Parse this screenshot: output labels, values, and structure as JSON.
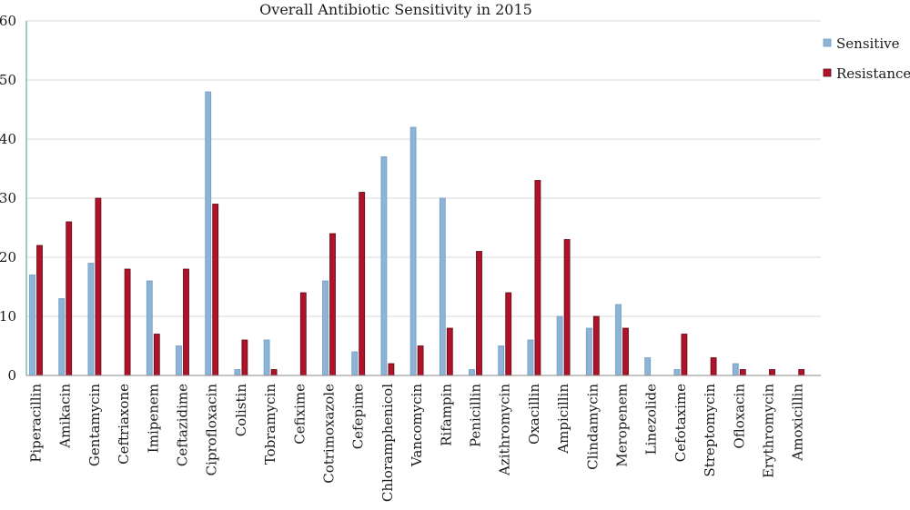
{
  "chart_data": {
    "type": "bar",
    "title": "Overall Antibiotic Sensitivity in 2015",
    "xlabel": "",
    "ylabel": "",
    "ylim": [
      0,
      60
    ],
    "yticks": [
      0,
      10,
      20,
      30,
      40,
      50,
      60
    ],
    "grid": true,
    "legend_position": "top-right",
    "categories": [
      "Piperacillin",
      "Amikacin",
      "Gentamycin",
      "Ceftriaxone",
      "Imipenem",
      "Ceftazidime",
      "Ciprofloxacin",
      "Colistin",
      "Tobramycin",
      "Cefixime",
      "Cotrimoxazole",
      "Cefepime",
      "Chloramphenicol",
      "Vancomycin",
      "Rifampin",
      "Penicillin",
      "Azithromycin",
      "Oxacillin",
      "Ampicillin",
      "Clindamycin",
      "Meropenem",
      "Linezolide",
      "Cefotaxime",
      "Streptomycin",
      "Ofloxacin",
      "Erythromycin",
      "Amoxicillin"
    ],
    "series": [
      {
        "name": "Sensitive",
        "color": "#8db3d6",
        "values": [
          17,
          13,
          19,
          0,
          16,
          5,
          48,
          1,
          6,
          0,
          16,
          4,
          37,
          42,
          30,
          1,
          5,
          6,
          10,
          8,
          12,
          3,
          1,
          0,
          2,
          0,
          0
        ]
      },
      {
        "name": "Resistance",
        "color": "#b0122a",
        "values": [
          22,
          26,
          30,
          18,
          7,
          18,
          29,
          6,
          1,
          14,
          24,
          31,
          2,
          5,
          8,
          21,
          14,
          33,
          23,
          10,
          8,
          0,
          7,
          3,
          1,
          1,
          1
        ]
      }
    ]
  }
}
